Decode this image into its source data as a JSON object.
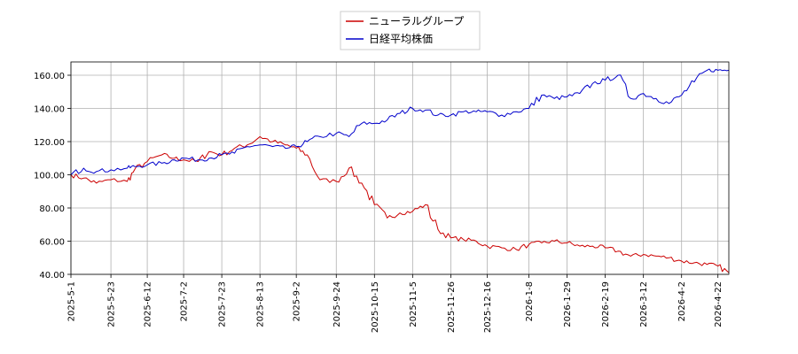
{
  "chart_data": {
    "type": "line",
    "title": "",
    "xlabel": "",
    "ylabel": "",
    "ylim": [
      40,
      168
    ],
    "grid": true,
    "legend_position": "top-center",
    "x_ticks": [
      "2025-5-1",
      "2025-5-23",
      "2025-6-12",
      "2025-7-2",
      "2025-7-23",
      "2025-8-13",
      "2025-9-2",
      "2025-9-24",
      "2025-10-15",
      "2025-11-5",
      "2025-11-26",
      "2025-12-16",
      "2026-1-8",
      "2026-1-29",
      "2026-2-19",
      "2026-3-12",
      "2026-4-2",
      "2026-4-22"
    ],
    "y_ticks": [
      "40.00",
      "60.00",
      "80.00",
      "100.00",
      "120.00",
      "140.00",
      "160.00"
    ],
    "y_tick_values": [
      40,
      60,
      80,
      100,
      120,
      140,
      160
    ],
    "series": [
      {
        "name": "ニューラルグループ",
        "color": "#cc0000",
        "x": [
          "2025-5-1",
          "2025-5-8",
          "2025-5-15",
          "2025-5-23",
          "2025-6-1",
          "2025-6-5",
          "2025-6-12",
          "2025-6-20",
          "2025-6-27",
          "2025-7-2",
          "2025-7-10",
          "2025-7-16",
          "2025-7-23",
          "2025-7-30",
          "2025-8-6",
          "2025-8-13",
          "2025-8-20",
          "2025-8-27",
          "2025-9-2",
          "2025-9-8",
          "2025-9-15",
          "2025-9-24",
          "2025-10-1",
          "2025-10-8",
          "2025-10-15",
          "2025-10-22",
          "2025-10-29",
          "2025-11-5",
          "2025-11-12",
          "2025-11-19",
          "2025-11-26",
          "2025-12-3",
          "2025-12-10",
          "2025-12-16",
          "2025-12-24",
          "2026-1-1",
          "2026-1-8",
          "2026-1-15",
          "2026-1-22",
          "2026-1-29",
          "2026-2-5",
          "2026-2-12",
          "2026-2-19",
          "2026-2-26",
          "2026-3-5",
          "2026-3-12",
          "2026-3-19",
          "2026-3-26",
          "2026-4-2",
          "2026-4-9",
          "2026-4-16",
          "2026-4-22",
          "2026-4-28"
        ],
        "values": [
          100,
          98,
          95,
          97,
          96,
          103,
          108,
          112,
          110,
          109,
          108,
          114,
          112,
          116,
          118,
          123,
          120,
          118,
          116,
          112,
          97,
          96,
          104,
          95,
          82,
          74,
          77,
          78,
          82,
          67,
          62,
          61,
          60,
          57,
          56,
          55,
          58,
          59,
          60,
          59,
          57,
          57,
          56,
          54,
          51,
          52,
          51,
          50,
          48,
          47,
          46,
          45,
          41
        ]
      },
      {
        "name": "日経平均株価",
        "color": "#0000cc",
        "x": [
          "2025-5-1",
          "2025-5-8",
          "2025-5-15",
          "2025-5-23",
          "2025-6-1",
          "2025-6-5",
          "2025-6-12",
          "2025-6-20",
          "2025-6-27",
          "2025-7-2",
          "2025-7-10",
          "2025-7-16",
          "2025-7-23",
          "2025-7-30",
          "2025-8-6",
          "2025-8-13",
          "2025-8-20",
          "2025-8-27",
          "2025-9-2",
          "2025-9-8",
          "2025-9-15",
          "2025-9-24",
          "2025-10-1",
          "2025-10-8",
          "2025-10-15",
          "2025-10-22",
          "2025-10-29",
          "2025-11-5",
          "2025-11-12",
          "2025-11-19",
          "2025-11-26",
          "2025-12-3",
          "2025-12-10",
          "2025-12-16",
          "2025-12-24",
          "2026-1-1",
          "2026-1-8",
          "2026-1-15",
          "2026-1-22",
          "2026-1-29",
          "2026-2-5",
          "2026-2-12",
          "2026-2-19",
          "2026-2-26",
          "2026-3-5",
          "2026-3-12",
          "2026-3-19",
          "2026-3-26",
          "2026-4-2",
          "2026-4-9",
          "2026-4-16",
          "2026-4-22",
          "2026-4-28"
        ],
        "values": [
          100,
          104,
          102,
          103,
          104,
          105,
          106,
          107,
          109,
          110,
          109,
          110,
          112,
          113,
          117,
          118,
          117,
          116,
          117,
          120,
          123,
          125,
          123,
          131,
          131,
          133,
          137,
          140,
          139,
          136,
          136,
          138,
          138,
          138,
          136,
          138,
          140,
          148,
          146,
          147,
          149,
          155,
          157,
          160,
          146,
          149,
          146,
          143,
          148,
          156,
          163,
          163,
          163
        ]
      }
    ]
  }
}
